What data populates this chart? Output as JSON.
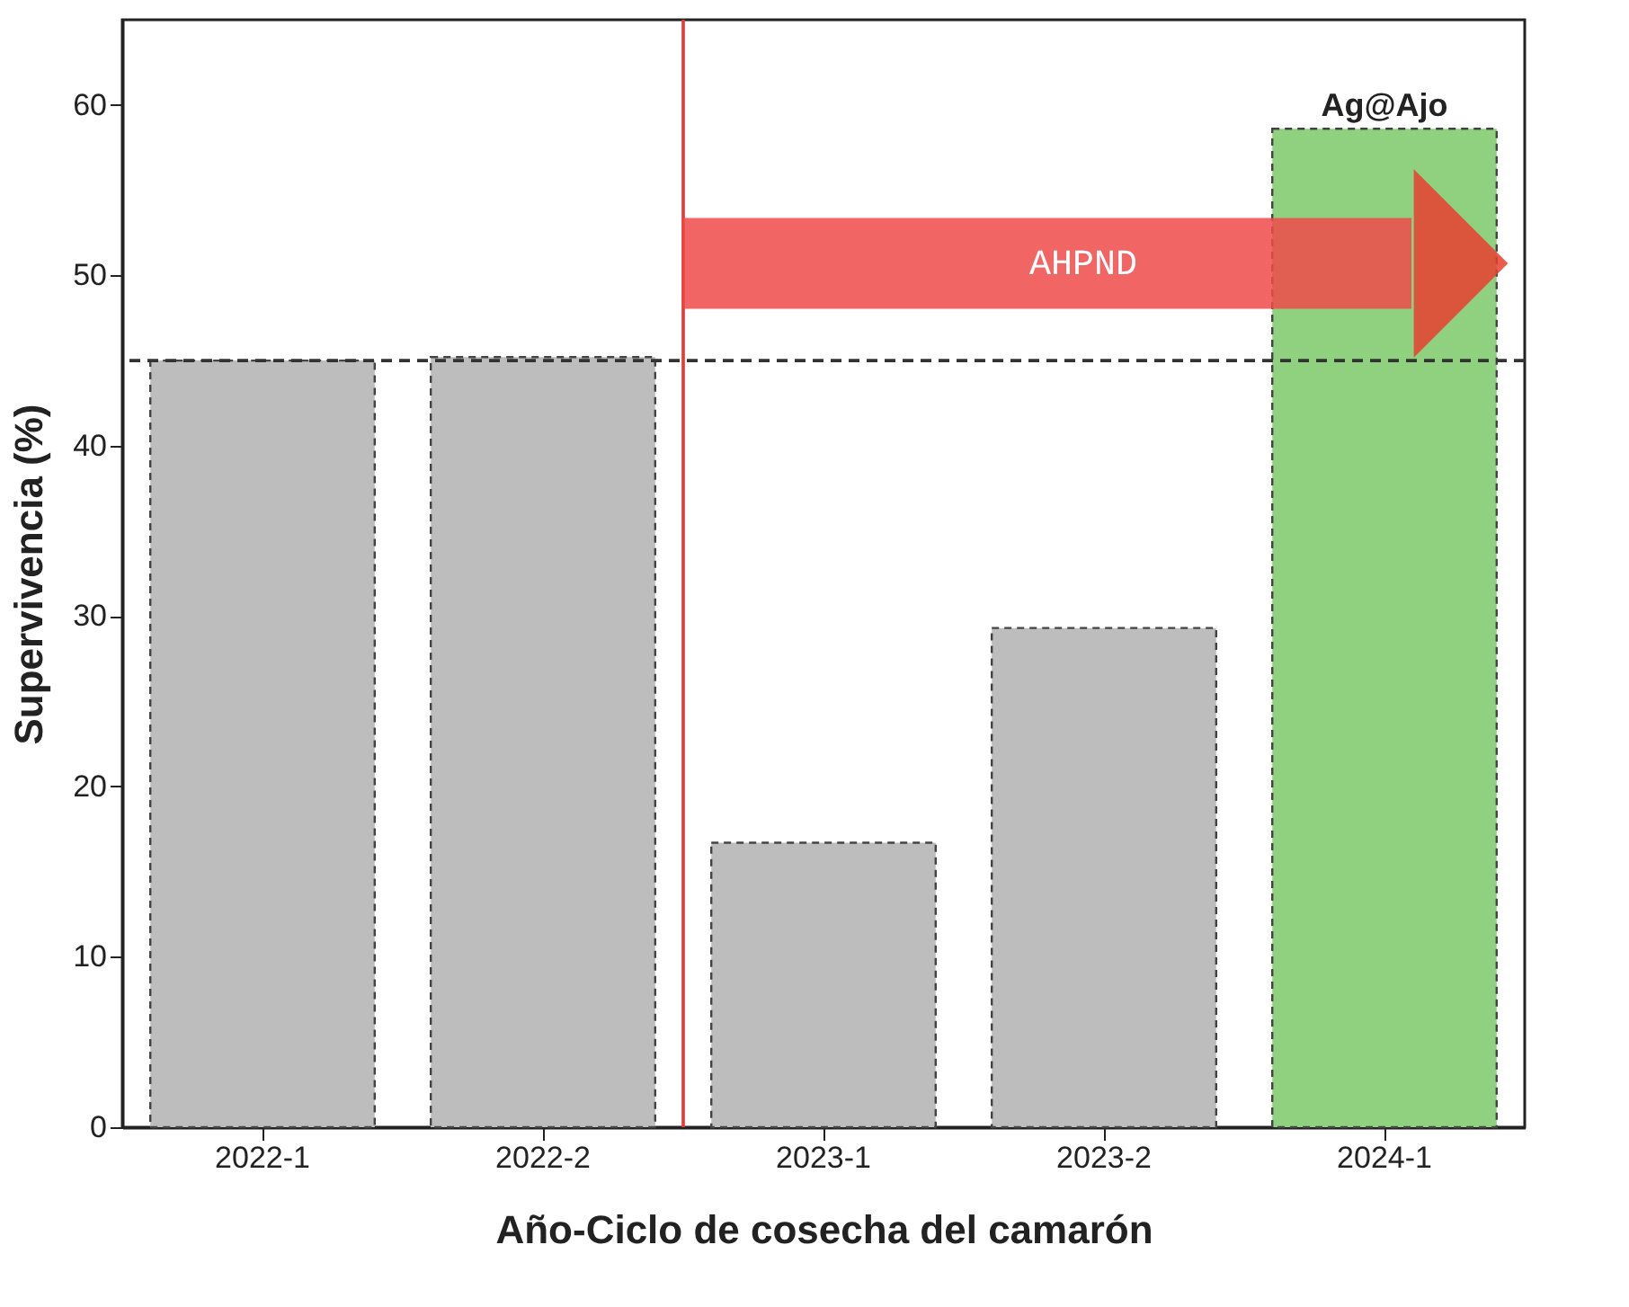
{
  "chart_data": {
    "type": "bar",
    "categories": [
      "2022-1",
      "2022-2",
      "2023-1",
      "2023-2",
      "2024-1"
    ],
    "values": [
      45.0,
      45.2,
      16.7,
      29.3,
      58.6
    ],
    "colors": [
      "#bdbdbd",
      "#bdbdbd",
      "#bdbdbd",
      "#bdbdbd",
      "#8fd17e"
    ],
    "xlabel": "Año-Ciclo de cosecha del camarón",
    "ylabel": "Supervivencia (%)",
    "ylim": [
      0,
      65
    ],
    "yticks": [
      0,
      10,
      20,
      30,
      40,
      50,
      60
    ],
    "grid": false,
    "ref_lines": [
      {
        "axis": "y",
        "value": 45,
        "color": "#333333",
        "line_style": "dashed"
      },
      {
        "axis": "x",
        "value": "2023-1",
        "color": "#e53935",
        "line_style": "solid"
      }
    ],
    "annotations": [
      {
        "text": "Ag@Ajo",
        "x": "2024-1",
        "y": 58.6
      },
      "AHPND"
    ]
  }
}
